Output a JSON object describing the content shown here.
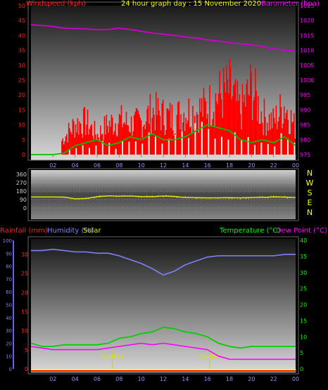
{
  "chart_data": [
    {
      "type": "line",
      "title": "24 hour graph day : 15 November 2020",
      "left_axis_label": "Windspeed (kph)",
      "right_axis_label": "Barometer (hpa)",
      "x_ticks": [
        "02",
        "04",
        "06",
        "08",
        "10",
        "12",
        "14",
        "16",
        "18",
        "20",
        "22",
        "00"
      ],
      "left_ticks": [
        0,
        5,
        10,
        15,
        20,
        25,
        30,
        35,
        40,
        45,
        50
      ],
      "right_ticks": [
        975,
        980,
        985,
        990,
        995,
        1000,
        1005,
        1010,
        1015,
        1020,
        1025
      ],
      "ylim_left": [
        0,
        50
      ],
      "ylim_right": [
        975,
        1025
      ],
      "series": [
        {
          "name": "Barometer (hpa)",
          "color": "#d000d0",
          "x": [
            0,
            1,
            2,
            3,
            4,
            5,
            6,
            7,
            8,
            9,
            10,
            11,
            12,
            13,
            14,
            15,
            16,
            17,
            18,
            19,
            20,
            21,
            22,
            23,
            24
          ],
          "values": [
            1018.6,
            1018.3,
            1018.0,
            1017.4,
            1017.3,
            1017.2,
            1016.9,
            1017.0,
            1017.4,
            1017.0,
            1016.4,
            1015.8,
            1015.4,
            1015.0,
            1014.5,
            1014.1,
            1013.5,
            1013.1,
            1012.6,
            1012.2,
            1011.9,
            1011.2,
            1010.5,
            1010.0,
            1009.8
          ]
        },
        {
          "name": "Windspeed gust (kph)",
          "color": "#ff0000",
          "x": [
            0,
            1,
            2,
            3,
            4,
            5,
            6,
            7,
            8,
            9,
            10,
            11,
            12,
            13,
            14,
            15,
            16,
            17,
            18,
            19,
            20,
            21,
            22,
            23,
            24
          ],
          "values": [
            0,
            0,
            0,
            8,
            14,
            15,
            9,
            14,
            16,
            14,
            15,
            20,
            18,
            17,
            20,
            20,
            22,
            27,
            30,
            20,
            31,
            18,
            15,
            23,
            12
          ]
        },
        {
          "name": "Windspeed average (kph)",
          "color": "#00c000",
          "x": [
            0,
            1,
            2,
            3,
            4,
            5,
            6,
            7,
            8,
            9,
            10,
            11,
            12,
            13,
            14,
            15,
            16,
            17,
            18,
            19,
            20,
            21,
            22,
            23,
            24
          ],
          "values": [
            0,
            0,
            0,
            0.5,
            3,
            4,
            5,
            3,
            4,
            6,
            5,
            7,
            5,
            5,
            6,
            8,
            10,
            9,
            8,
            5,
            4,
            5,
            4,
            6,
            3
          ]
        }
      ]
    },
    {
      "type": "line",
      "left_ticks": [
        0,
        90,
        180,
        270,
        360
      ],
      "compass_labels": [
        "N",
        "W",
        "S",
        "E",
        "N"
      ],
      "ylim": [
        0,
        360
      ],
      "series": [
        {
          "name": "Wind direction",
          "color": "#e8e800",
          "x": [
            0,
            1,
            2,
            3,
            4,
            5,
            6,
            7,
            8,
            9,
            10,
            11,
            12,
            13,
            14,
            15,
            16,
            17,
            18,
            19,
            20,
            21,
            22,
            23,
            24
          ],
          "values": [
            118,
            118,
            118,
            116,
            98,
            102,
            120,
            130,
            126,
            128,
            122,
            120,
            128,
            124,
            112,
            110,
            108,
            108,
            110,
            108,
            112,
            114,
            118,
            116,
            112
          ]
        }
      ]
    },
    {
      "type": "line",
      "left_label_rain": "Rainfall (mm)",
      "left_label_humidity": "Humidity (%)",
      "left_label_solar": "Solar",
      "right_label_temp": "Temperature (°C)",
      "right_label_dew": "Dew Point (°C)",
      "x_ticks": [
        "02",
        "04",
        "06",
        "08",
        "10",
        "12",
        "14",
        "16",
        "18",
        "20",
        "22",
        "00"
      ],
      "rain_ticks": [
        0,
        5,
        10,
        15,
        20,
        25,
        30
      ],
      "humidity_ticks": [
        0,
        10,
        20,
        30,
        40,
        50,
        60,
        70,
        80,
        90,
        100
      ],
      "temp_ticks": [
        0,
        5,
        10,
        15,
        20,
        25,
        30,
        35,
        40
      ],
      "ylim_temp": [
        0,
        40
      ],
      "ylim_humidity": [
        0,
        100
      ],
      "annotations": [
        "SunRise",
        "SunSet"
      ],
      "sunrise_hour": 7.4,
      "sunset_hour": 16.2,
      "series": [
        {
          "name": "Humidity (%)",
          "color": "#8080ff",
          "x": [
            0,
            1,
            2,
            3,
            4,
            5,
            6,
            7,
            8,
            9,
            10,
            11,
            12,
            13,
            14,
            15,
            16,
            17,
            18,
            19,
            20,
            21,
            22,
            23,
            24
          ],
          "values": [
            92,
            92,
            93,
            92,
            91,
            91,
            90,
            90,
            88,
            85,
            82,
            78,
            73,
            76,
            81,
            84,
            87,
            88,
            88,
            88,
            88,
            88,
            88,
            89,
            89
          ]
        },
        {
          "name": "Temperature (°C)",
          "color": "#00d000",
          "x": [
            0,
            1,
            2,
            3,
            4,
            5,
            6,
            7,
            8,
            9,
            10,
            11,
            12,
            13,
            14,
            15,
            16,
            17,
            18,
            19,
            20,
            21,
            22,
            23,
            24
          ],
          "values": [
            8,
            7,
            7,
            7.5,
            7.5,
            7.5,
            7.5,
            8,
            9.5,
            10,
            11,
            11.5,
            13,
            12.5,
            11.5,
            11,
            10,
            8,
            7,
            6.5,
            7,
            7,
            7,
            7,
            7
          ]
        },
        {
          "name": "Dew Point (°C)",
          "color": "#ff00ff",
          "x": [
            0,
            1,
            2,
            3,
            4,
            5,
            6,
            7,
            8,
            9,
            10,
            11,
            12,
            13,
            14,
            15,
            16,
            17,
            18,
            19,
            20,
            21,
            22,
            23,
            24
          ],
          "values": [
            7,
            6.5,
            6,
            6,
            6,
            6,
            6,
            6.5,
            7,
            7.5,
            8,
            7.5,
            8,
            7.5,
            7,
            6.5,
            6,
            4,
            3,
            3,
            3,
            3,
            3,
            3,
            3
          ]
        },
        {
          "name": "Rainfall (mm)",
          "color": "#ff0000",
          "x": [
            0,
            24
          ],
          "values": [
            0,
            0
          ]
        }
      ]
    }
  ]
}
